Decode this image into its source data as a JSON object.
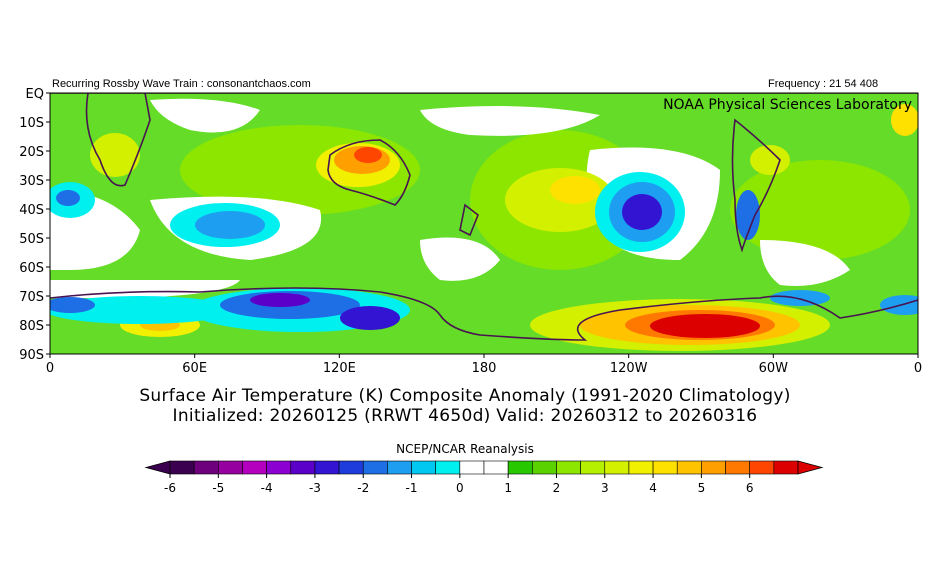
{
  "header": {
    "left": "Recurring Rossby Wave Train : consonantchaos.com",
    "right": "Frequency : 21 54 408"
  },
  "credit": "NOAA Physical Sciences Laboratory",
  "map": {
    "lat_labels": [
      "EQ",
      "10S",
      "20S",
      "30S",
      "40S",
      "50S",
      "60S",
      "70S",
      "80S",
      "90S"
    ],
    "lon_labels": [
      "0",
      "60E",
      "120E",
      "180",
      "120W",
      "60W",
      "0"
    ]
  },
  "title_line1": "Surface Air Temperature (K) Composite Anomaly (1991-2020 Climatology)",
  "title_line2": "Initialized: 20260125 (RRWT 4650d) Valid: 20260312 to 20260316",
  "colorbar": {
    "title": "NCEP/NCAR Reanalysis",
    "tick_labels": [
      "-6",
      "-5",
      "-4",
      "-3",
      "-2",
      "-1",
      "0",
      "1",
      "2",
      "3",
      "4",
      "5",
      "6"
    ],
    "colors": [
      "#3c0050",
      "#6e007e",
      "#9600a0",
      "#b400be",
      "#8c00d2",
      "#5a00c8",
      "#3214d2",
      "#1e3cdc",
      "#1e6ee6",
      "#1e9ef0",
      "#00c8f0",
      "#00f0f0",
      "#ffffff",
      "#ffffff",
      "#28c800",
      "#5ad200",
      "#8ce600",
      "#b4f000",
      "#d2f000",
      "#f0f000",
      "#ffe100",
      "#ffc300",
      "#ffa000",
      "#ff7800",
      "#ff4600",
      "#dc0000"
    ]
  },
  "colors": {
    "coast": "#4a1450",
    "warm_strong": "#dc0000",
    "cold_strong": "#3214d2",
    "green": "#64dc28"
  }
}
